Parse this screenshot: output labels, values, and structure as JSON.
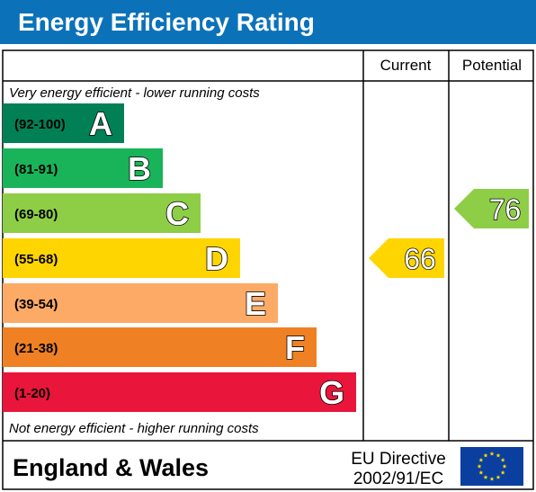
{
  "header": {
    "title": "Energy Efficiency Rating"
  },
  "columns": {
    "current": "Current",
    "potential": "Potential"
  },
  "notes": {
    "top": "Very energy efficient - lower running costs",
    "bottom": "Not energy efficient - higher running costs"
  },
  "footer": {
    "region": "England & Wales",
    "directive_line1": "EU Directive",
    "directive_line2": "2002/91/EC",
    "flag_icon": "eu-flag-icon"
  },
  "chart_data": {
    "type": "bar",
    "title": "Energy Efficiency Rating",
    "bands": [
      {
        "letter": "A",
        "range": "(92-100)",
        "color": "#008054",
        "text_color": "#ffffff"
      },
      {
        "letter": "B",
        "range": "(81-91)",
        "color": "#19b459",
        "text_color": "#ffffff"
      },
      {
        "letter": "C",
        "range": "(69-80)",
        "color": "#8dce46",
        "text_color": "#ffffff"
      },
      {
        "letter": "D",
        "range": "(55-68)",
        "color": "#ffd500",
        "text_color": "#ffffff"
      },
      {
        "letter": "E",
        "range": "(39-54)",
        "color": "#fcaa65",
        "text_color": "#ffffff"
      },
      {
        "letter": "F",
        "range": "(21-38)",
        "color": "#ef8023",
        "text_color": "#ffffff"
      },
      {
        "letter": "G",
        "range": "(1-20)",
        "color": "#e9153b",
        "text_color": "#ffffff"
      }
    ],
    "current": {
      "value": 66,
      "band": "D",
      "color": "#ffd500"
    },
    "potential": {
      "value": 76,
      "band": "C",
      "color": "#8dce46"
    }
  },
  "colors": {
    "header_bg": "#0b72b9",
    "eu_blue": "#0b3f9f",
    "eu_star": "#ffdd00"
  }
}
